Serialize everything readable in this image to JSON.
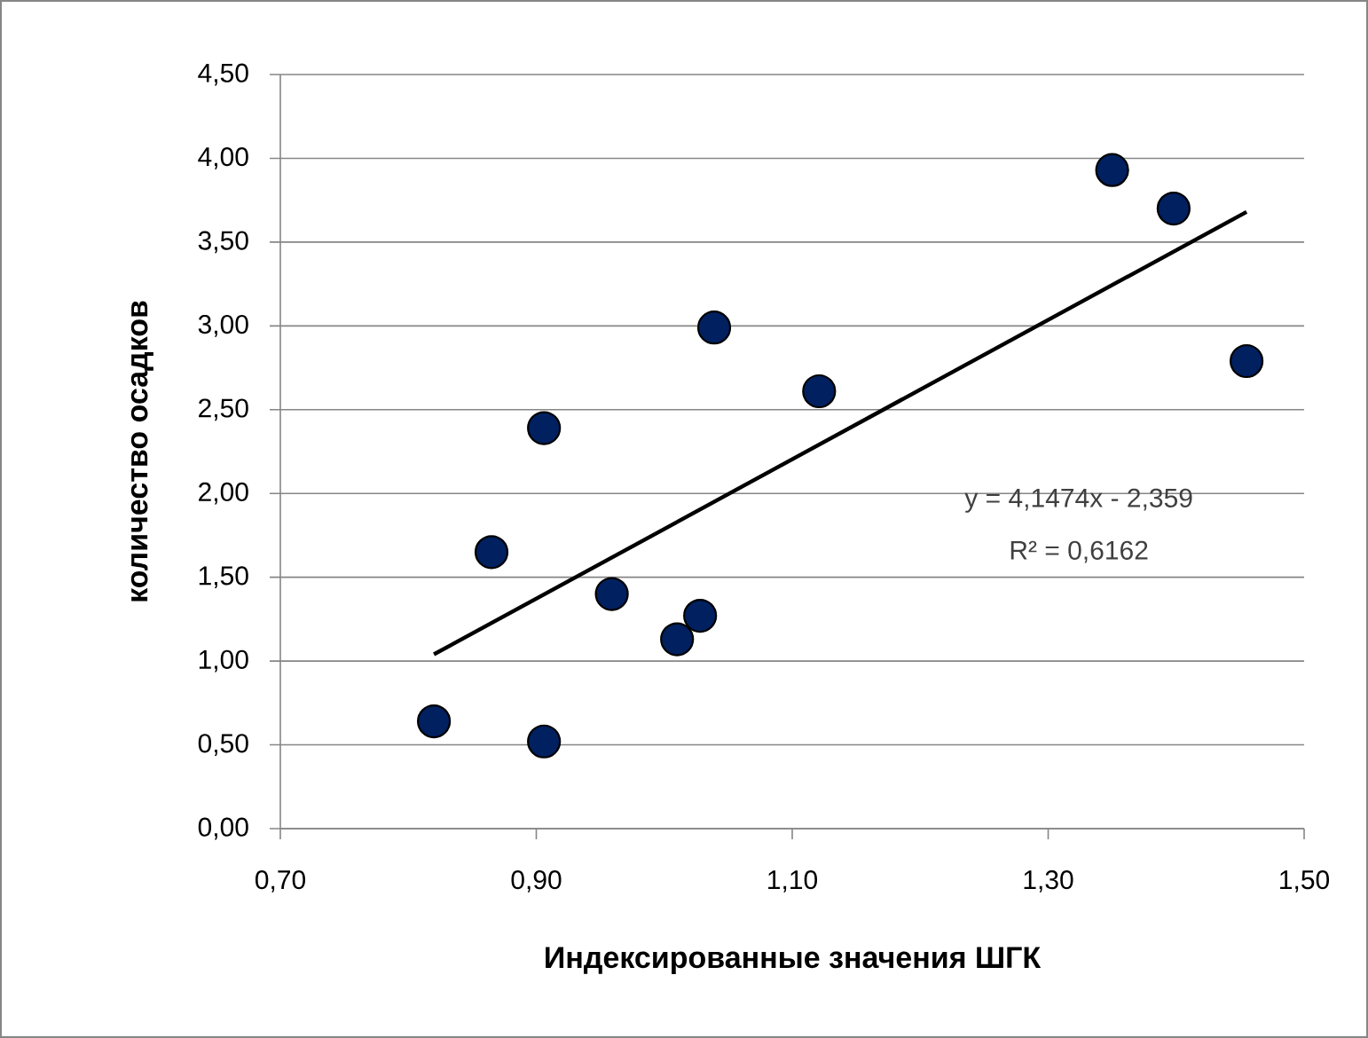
{
  "chart_data": {
    "type": "scatter",
    "xlabel": "Индексированные значения ШГК",
    "ylabel": "количество осадков",
    "series": [
      {
        "color": "#002060",
        "marker": "circle",
        "x": [
          0.82,
          0.865,
          0.906,
          0.906,
          0.959,
          1.01,
          1.028,
          1.039,
          1.121,
          1.35,
          1.398,
          1.455
        ],
        "values": [
          0.64,
          1.65,
          2.39,
          0.52,
          1.4,
          1.13,
          1.27,
          2.99,
          2.61,
          3.93,
          3.7,
          2.79
        ]
      },
      {
        "type": "line",
        "color": "#000000",
        "marker": "none",
        "line_style": "solid",
        "x": [
          0.82,
          1.455
        ],
        "values": [
          1.04,
          3.68
        ]
      }
    ],
    "annotations": [
      "y = 4,1474x - 2,359",
      "R² = 0,6162"
    ],
    "xlim": [
      0.7,
      1.5
    ],
    "ylim": [
      0,
      4.5
    ],
    "xticks": [
      {
        "value": 0.7,
        "label": "0,70"
      },
      {
        "value": 0.9,
        "label": "0,90"
      },
      {
        "value": 1.1,
        "label": "1,10"
      },
      {
        "value": 1.3,
        "label": "1,30"
      },
      {
        "value": 1.5,
        "label": "1,50"
      }
    ],
    "yticks": [
      {
        "value": 0,
        "label": "0,00"
      },
      {
        "value": 0.5,
        "label": "0,50"
      },
      {
        "value": 1,
        "label": "1,00"
      },
      {
        "value": 1.5,
        "label": "1,50"
      },
      {
        "value": 2,
        "label": "2,00"
      },
      {
        "value": 2.5,
        "label": "2,50"
      },
      {
        "value": 3,
        "label": "3,00"
      },
      {
        "value": 3.5,
        "label": "3,50"
      },
      {
        "value": 4,
        "label": "4,00"
      },
      {
        "value": 4.5,
        "label": "4,50"
      }
    ],
    "grid": "y"
  }
}
